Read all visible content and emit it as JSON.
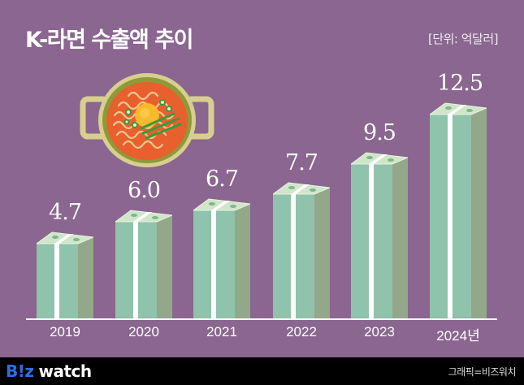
{
  "header": {
    "title": "K-라면 수출액 추이",
    "unit": "[단위: 억달러]"
  },
  "footer": {
    "logo_prefix": "B!z",
    "logo_suffix": "watch",
    "credit": "그래픽=비즈워치"
  },
  "colors": {
    "background": "#8a6690",
    "bar_front": "#8fc3ab",
    "bar_side": "#93a88a",
    "strap": "#ffffff",
    "footer": "#000000",
    "logo_blue": "#2b6fe0"
  },
  "chart_data": {
    "type": "bar",
    "title": "K-라면 수출액 추이",
    "unit_label": "[단위: 억달러]",
    "xlabel": "",
    "ylabel": "억달러",
    "categories": [
      "2019",
      "2020",
      "2021",
      "2022",
      "2023",
      "2024년"
    ],
    "values": [
      4.7,
      6.0,
      6.7,
      7.7,
      9.5,
      12.5
    ],
    "value_labels": [
      "4.7",
      "6.0",
      "6.7",
      "7.7",
      "9.5",
      "12.5"
    ],
    "grid": false,
    "legend": null,
    "decoration": "bars drawn as stacks of dollar bills with white strap; ramen pot illustration top-left"
  }
}
